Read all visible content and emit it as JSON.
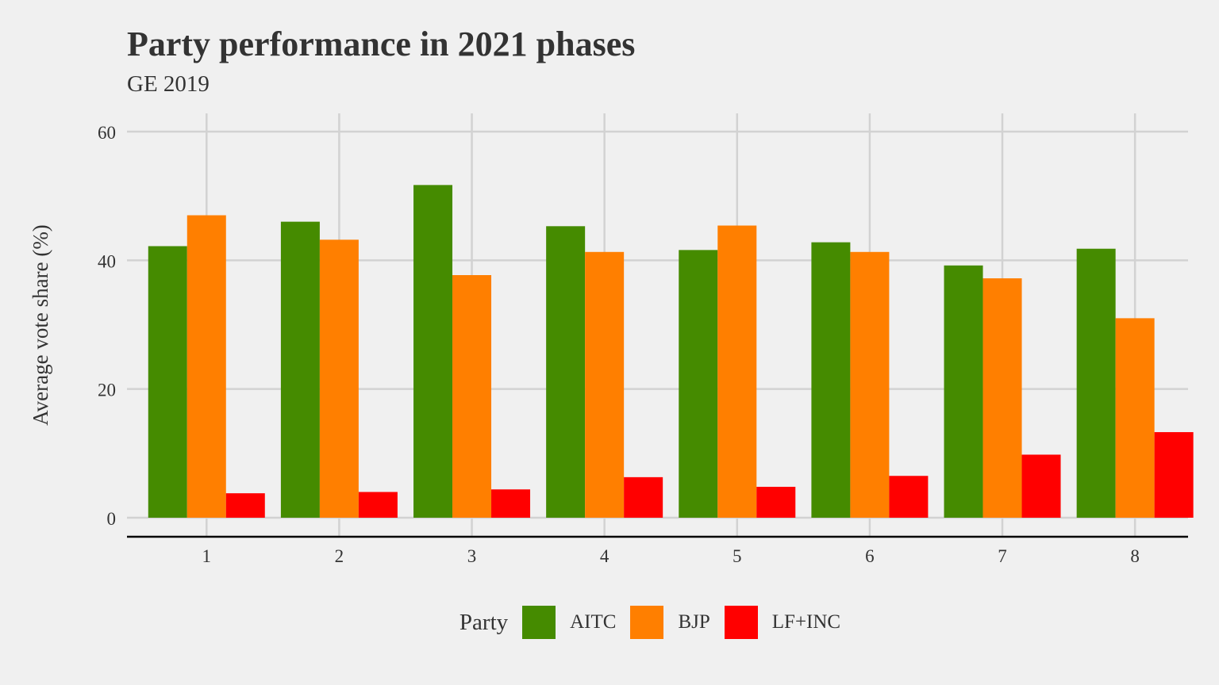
{
  "chart_data": {
    "type": "bar",
    "title": "Party performance in 2021 phases",
    "subtitle": "GE 2019",
    "xlabel": "",
    "ylabel": "Average vote share (%)",
    "categories": [
      "1",
      "2",
      "3",
      "4",
      "5",
      "6",
      "7",
      "8"
    ],
    "ylim": [
      0,
      60
    ],
    "yticks": [
      "0",
      "20",
      "40",
      "60"
    ],
    "grid": true,
    "legend_position": "bottom",
    "legend_title": "Party",
    "series": [
      {
        "name": "AITC",
        "color": "#458b00",
        "values": [
          42.2,
          46.0,
          51.7,
          45.3,
          41.6,
          42.8,
          39.2,
          41.8
        ]
      },
      {
        "name": "BJP",
        "color": "#ff7f00",
        "values": [
          47.0,
          43.2,
          37.7,
          41.3,
          45.4,
          41.3,
          37.2,
          31.0
        ]
      },
      {
        "name": "LF+INC",
        "color": "#ff0000",
        "values": [
          3.8,
          4.0,
          4.4,
          6.3,
          4.8,
          6.5,
          9.8,
          13.3
        ]
      }
    ]
  }
}
